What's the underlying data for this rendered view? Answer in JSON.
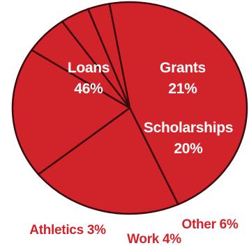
{
  "chart_data": {
    "type": "pie",
    "title": "",
    "slices": [
      {
        "label": "Loans",
        "value_label": "46%",
        "value": 46,
        "placement": "inside"
      },
      {
        "label": "Grants",
        "value_label": "21%",
        "value": 21,
        "placement": "inside"
      },
      {
        "label": "Scholarships",
        "value_label": "20%",
        "value": 20,
        "placement": "inside"
      },
      {
        "label": "Other",
        "value_label": "6%",
        "value": 6,
        "placement": "outside"
      },
      {
        "label": "Work",
        "value_label": "4%",
        "value": 4,
        "placement": "outside"
      },
      {
        "label": "Athletics",
        "value_label": "3%",
        "value": 3,
        "placement": "outside"
      }
    ],
    "colors": {
      "fill": "#d1232a",
      "stroke": "#3a0a0f",
      "outside_label": "#d1232a",
      "inside_label": "#ffffff"
    }
  }
}
